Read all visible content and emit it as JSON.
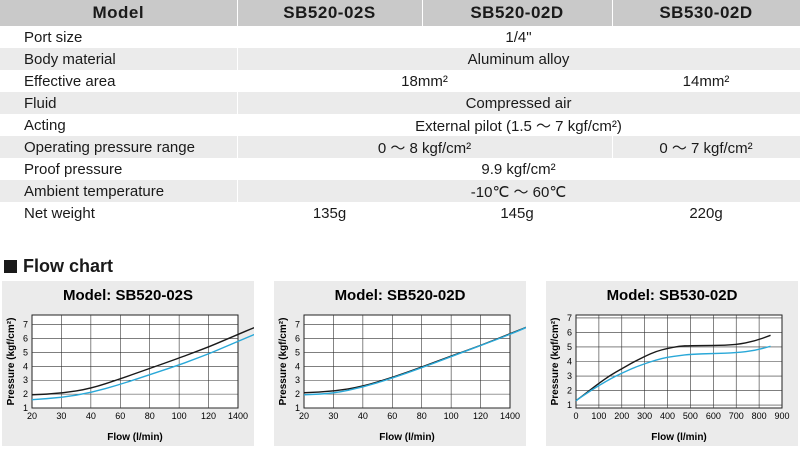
{
  "table": {
    "headers": [
      "Model",
      "SB520-02S",
      "SB520-02D",
      "SB530-02D"
    ],
    "rows": [
      {
        "label": "Port size",
        "span3": "1/4\""
      },
      {
        "label": "Body material",
        "span3": "Aluminum alloy"
      },
      {
        "label": "Effective area",
        "span2": "18mm²",
        "last": "14mm²"
      },
      {
        "label": "Fluid",
        "span3": "Compressed air"
      },
      {
        "label": "Acting",
        "span3": "External pilot (1.5 ～ 7 kgf/cm²)"
      },
      {
        "label": "Operating pressure range",
        "span2": "0 ～ 8 kgf/cm²",
        "last": "0 ～ 7 kgf/cm²"
      },
      {
        "label": "Proof pressure",
        "span3": "9.9 kgf/cm²"
      },
      {
        "label": "Ambient temperature",
        "span3": "-10℃ ～ 60℃"
      },
      {
        "label": "Net weight",
        "c1": "135g",
        "c2": "145g",
        "c3": "220g"
      }
    ]
  },
  "flow_section": {
    "title": "Flow chart"
  },
  "colors": {
    "header_bg": "#c9c9c9",
    "stripe": "#ebebeb",
    "black_line": "#1a1a1a",
    "blue_line": "#29a8d8"
  },
  "chart_data": [
    {
      "type": "line",
      "title": "Model: SB520-02S",
      "xlabel": "Flow (l/min)",
      "ylabel": "Pressure (kgf/cm²)",
      "x_ticks": [
        "20",
        "30",
        "40",
        "60",
        "80",
        "100",
        "120",
        "1400"
      ],
      "y_ticks": [
        "1",
        "2",
        "3",
        "4",
        "5",
        "6",
        "7"
      ],
      "ylim": [
        1,
        7.7
      ],
      "series": [
        {
          "name": "black",
          "color": "#1a1a1a",
          "points": [
            [
              0,
              1.95
            ],
            [
              1,
              2.05
            ],
            [
              2,
              2.4
            ],
            [
              3,
              3.1
            ],
            [
              4,
              3.85
            ],
            [
              5,
              4.6
            ],
            [
              5.5,
              5.0
            ],
            [
              6,
              5.4
            ],
            [
              6.5,
              5.85
            ],
            [
              7,
              6.3
            ],
            [
              7.5,
              6.75
            ],
            [
              8,
              7.15
            ],
            [
              8.2,
              7.3
            ]
          ]
        },
        {
          "name": "blue",
          "color": "#29a8d8",
          "points": [
            [
              0,
              1.6
            ],
            [
              1,
              1.75
            ],
            [
              2,
              2.1
            ],
            [
              3,
              2.7
            ],
            [
              4,
              3.4
            ],
            [
              5,
              4.1
            ],
            [
              5.5,
              4.5
            ],
            [
              6,
              4.9
            ],
            [
              6.5,
              5.35
            ],
            [
              7,
              5.8
            ],
            [
              7.5,
              6.25
            ],
            [
              8,
              6.7
            ],
            [
              8.2,
              6.85
            ]
          ]
        }
      ]
    },
    {
      "type": "line",
      "title": "Model: SB520-02D",
      "xlabel": "Flow (l/min)",
      "ylabel": "Pressure (kgf/cm²)",
      "x_ticks": [
        "20",
        "30",
        "40",
        "60",
        "80",
        "100",
        "120",
        "1400"
      ],
      "y_ticks": [
        "1",
        "2",
        "3",
        "4",
        "5",
        "6",
        "7"
      ],
      "ylim": [
        1,
        7.7
      ],
      "series": [
        {
          "name": "black",
          "color": "#1a1a1a",
          "points": [
            [
              0,
              2.1
            ],
            [
              1,
              2.2
            ],
            [
              2,
              2.55
            ],
            [
              3,
              3.2
            ],
            [
              4,
              3.95
            ],
            [
              5,
              4.75
            ],
            [
              6,
              5.5
            ],
            [
              7,
              6.35
            ],
            [
              8,
              7.2
            ]
          ]
        },
        {
          "name": "blue",
          "color": "#29a8d8",
          "points": [
            [
              0,
              1.95
            ],
            [
              1,
              2.05
            ],
            [
              2,
              2.5
            ],
            [
              3,
              3.15
            ],
            [
              4,
              3.9
            ],
            [
              5,
              4.7
            ],
            [
              6,
              5.5
            ],
            [
              7,
              6.3
            ],
            [
              8,
              7.2
            ]
          ]
        }
      ]
    },
    {
      "type": "line",
      "title": "Model: SB530-02D",
      "xlabel": "Flow (l/min)",
      "ylabel": "Pressure (kgf/cm²)",
      "x_ticks": [
        "0",
        "100",
        "200",
        "300",
        "400",
        "500",
        "600",
        "700",
        "800",
        "900"
      ],
      "y_ticks": [
        "1",
        "2",
        "3",
        "4",
        "5",
        "6",
        "7"
      ],
      "ylim": [
        0.8,
        7.2
      ],
      "series": [
        {
          "name": "black",
          "color": "#1a1a1a",
          "points": [
            [
              0,
              1.3
            ],
            [
              50,
              1.9
            ],
            [
              100,
              2.5
            ],
            [
              150,
              3.05
            ],
            [
              200,
              3.5
            ],
            [
              250,
              3.95
            ],
            [
              300,
              4.35
            ],
            [
              350,
              4.7
            ],
            [
              400,
              4.9
            ],
            [
              450,
              5.05
            ],
            [
              500,
              5.1
            ],
            [
              600,
              5.1
            ],
            [
              700,
              5.15
            ],
            [
              780,
              5.4
            ],
            [
              850,
              5.8
            ]
          ]
        },
        {
          "name": "blue",
          "color": "#29a8d8",
          "points": [
            [
              0,
              1.3
            ],
            [
              50,
              1.85
            ],
            [
              100,
              2.35
            ],
            [
              150,
              2.8
            ],
            [
              200,
              3.2
            ],
            [
              250,
              3.55
            ],
            [
              300,
              3.85
            ],
            [
              350,
              4.1
            ],
            [
              400,
              4.3
            ],
            [
              450,
              4.4
            ],
            [
              500,
              4.5
            ],
            [
              600,
              4.55
            ],
            [
              700,
              4.6
            ],
            [
              780,
              4.75
            ],
            [
              850,
              5.05
            ]
          ]
        }
      ]
    }
  ]
}
